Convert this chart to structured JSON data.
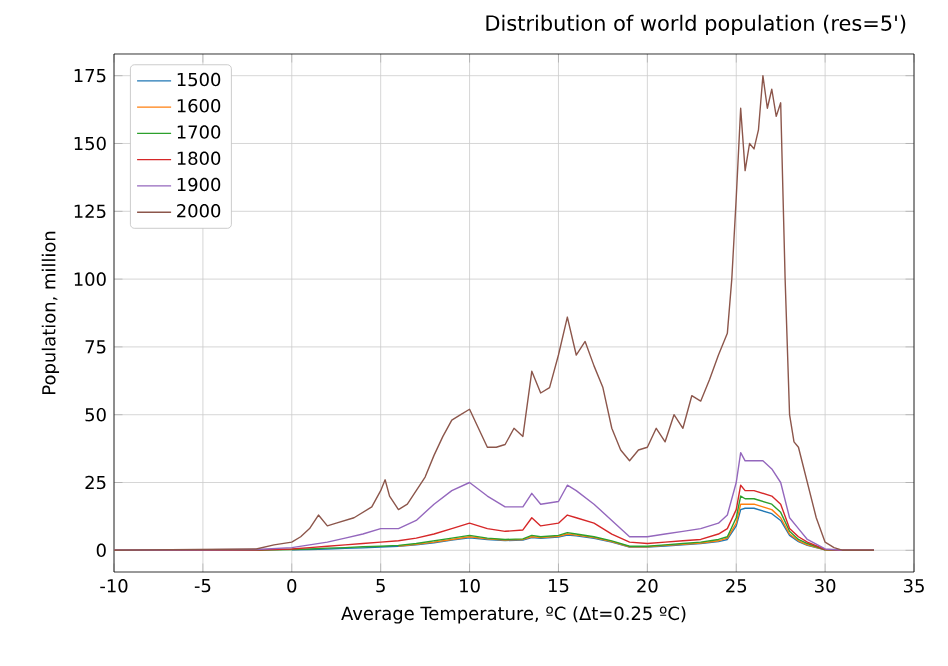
{
  "chart_data": {
    "type": "line",
    "title": "Distribution of world population (res=5')",
    "xlabel": "Average Temperature, ºC (Δt=0.25 ºC)",
    "ylabel": "Population, million",
    "x": [
      -10,
      -2,
      0,
      1,
      2,
      3,
      4,
      5,
      6,
      7,
      8,
      9,
      10,
      11,
      12,
      13,
      13.5,
      14,
      15,
      15.5,
      16,
      17,
      18,
      19,
      20,
      21,
      22,
      23,
      24,
      24.5,
      25,
      25.25,
      25.5,
      26,
      26.5,
      27,
      27.5,
      28,
      28.5,
      29,
      30,
      31,
      32.75
    ],
    "series": [
      {
        "name": "1500",
        "color": "#1f77b4",
        "values": [
          null,
          null,
          0.2,
          0.3,
          0.5,
          0.7,
          0.9,
          1.2,
          1.5,
          2,
          2.8,
          3.8,
          4.6,
          4,
          3.6,
          3.8,
          4.7,
          4.4,
          4.9,
          5.6,
          5.3,
          4.4,
          3,
          1.2,
          1.2,
          1.6,
          2,
          2.5,
          3.2,
          4,
          9,
          15,
          15.5,
          15.5,
          14.5,
          13.5,
          11,
          5.5,
          3.2,
          1.8,
          0.2,
          null,
          null
        ]
      },
      {
        "name": "1600",
        "color": "#ff7f0e",
        "values": [
          null,
          null,
          null,
          null,
          null,
          null,
          null,
          null,
          1.6,
          2.2,
          3,
          4,
          5,
          4.2,
          3.8,
          4,
          5,
          4.7,
          5.2,
          6,
          5.6,
          4.7,
          3.2,
          1.3,
          1.3,
          1.8,
          2.2,
          2.7,
          3.5,
          4.5,
          10,
          17,
          17,
          17,
          16,
          15,
          12,
          6,
          3.5,
          2,
          0.2,
          0,
          0
        ]
      },
      {
        "name": "1700",
        "color": "#2ca02c",
        "values": [
          0,
          0,
          0.3,
          0.5,
          0.8,
          1,
          1.3,
          1.5,
          1.8,
          2.5,
          3.5,
          4.5,
          5.5,
          4.5,
          4,
          4.2,
          5.5,
          5,
          5.5,
          6.5,
          6,
          5,
          3.5,
          1.5,
          1.5,
          2,
          2.5,
          3,
          4,
          5,
          12,
          20,
          19,
          19,
          18,
          17,
          14,
          7,
          4,
          2.5,
          0.2,
          0,
          0
        ]
      },
      {
        "name": "1800",
        "color": "#d62728",
        "values": [
          0,
          0.1,
          0.5,
          1,
          1.5,
          2,
          2.5,
          3,
          3.5,
          4.5,
          6,
          8,
          10,
          8,
          7,
          7.5,
          12,
          9,
          10,
          13,
          12,
          10,
          6,
          3,
          2.5,
          3,
          3.5,
          4,
          6,
          8,
          15,
          24,
          22,
          22,
          21,
          20,
          17,
          8,
          5,
          3,
          0.3,
          0,
          0
        ]
      },
      {
        "name": "1900",
        "color": "#9467bd",
        "values": [
          0,
          0.3,
          1,
          2,
          3,
          4.5,
          6,
          8,
          8,
          11,
          17,
          22,
          25,
          20,
          16,
          16,
          21,
          17,
          18,
          24,
          22,
          17,
          11,
          5,
          5,
          6,
          7,
          8,
          10,
          13,
          25,
          36,
          33,
          33,
          33,
          30,
          25,
          12,
          8,
          4,
          0.5,
          0,
          0
        ]
      },
      {
        "name": "2000",
        "color": "#8c564b",
        "x": [
          -10,
          -2,
          -1,
          0,
          0.5,
          1,
          1.5,
          2,
          2.5,
          3,
          3.5,
          4,
          4.5,
          5,
          5.25,
          5.5,
          6,
          6.5,
          7,
          7.5,
          8,
          8.5,
          9,
          9.5,
          10,
          10.5,
          11,
          11.5,
          12,
          12.5,
          13,
          13.5,
          14,
          14.5,
          15,
          15.5,
          16,
          16.5,
          17,
          17.5,
          18,
          18.5,
          19,
          19.5,
          20,
          20.5,
          21,
          21.5,
          22,
          22.5,
          23,
          23.5,
          24,
          24.5,
          24.75,
          25,
          25.25,
          25.5,
          25.75,
          26,
          26.25,
          26.5,
          26.75,
          27,
          27.25,
          27.5,
          27.75,
          28,
          28.25,
          28.5,
          29,
          29.5,
          30,
          30.5,
          31,
          32.75
        ],
        "values": [
          0,
          0.5,
          2,
          3,
          5,
          8,
          13,
          9,
          10,
          11,
          12,
          14,
          16,
          22,
          26,
          20,
          15,
          17,
          22,
          27,
          35,
          42,
          48,
          50,
          52,
          45,
          38,
          38,
          39,
          45,
          42,
          66,
          58,
          60,
          72,
          86,
          72,
          77,
          68,
          60,
          45,
          37,
          33,
          37,
          38,
          45,
          40,
          50,
          45,
          57,
          55,
          63,
          72,
          80,
          100,
          130,
          163,
          140,
          150,
          148,
          155,
          175,
          163,
          170,
          160,
          165,
          100,
          50,
          40,
          38,
          25,
          12,
          3,
          1,
          0,
          0
        ]
      }
    ],
    "xlim": [
      -10,
      35
    ],
    "ylim": [
      -8,
      183
    ],
    "xticks": [
      -10,
      -5,
      0,
      5,
      10,
      15,
      20,
      25,
      30,
      35
    ],
    "yticks": [
      0,
      25,
      50,
      75,
      100,
      125,
      150,
      175
    ],
    "grid": true,
    "legend": "top left",
    "marker": "none",
    "line_style": "solid"
  }
}
